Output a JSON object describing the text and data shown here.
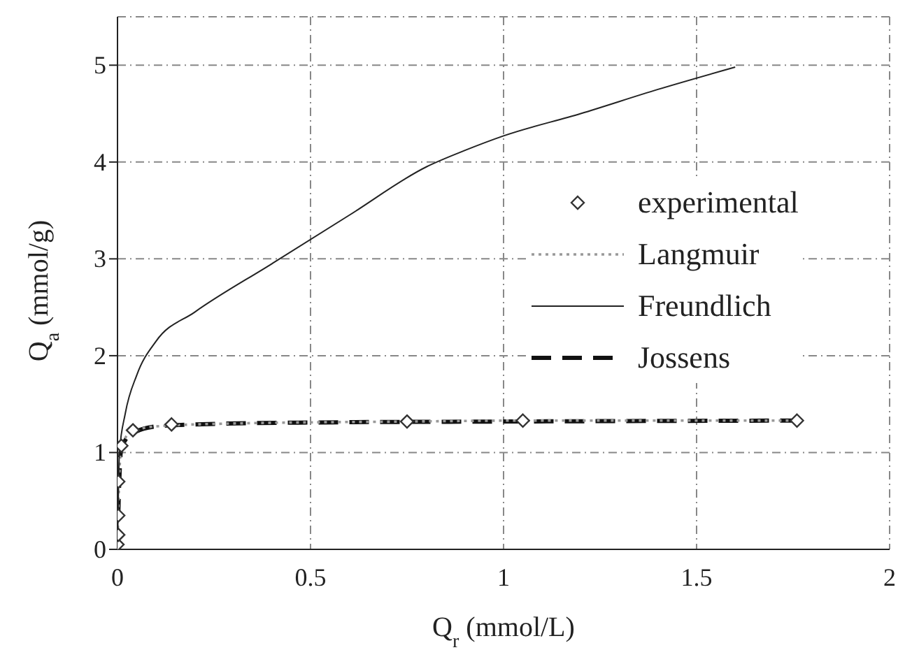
{
  "chart_data": {
    "type": "line",
    "xlabel": "Q$_{r}$ (mmol/L)",
    "ylabel": "Q$_{a}$ (mmol/g)",
    "xlim": [
      0,
      2
    ],
    "xticks": [
      0,
      0.5,
      1,
      1.5,
      2
    ],
    "ylim": [
      0,
      5.5
    ],
    "yticks": [
      0,
      1,
      2,
      3,
      4,
      5
    ],
    "grid": true,
    "legend": "right",
    "series": [
      {
        "name": "experimental",
        "type": "scatter",
        "marker": "diamond",
        "color": "#333333",
        "x": [
          0,
          0.002,
          0.002,
          0.002,
          0.01,
          0.04,
          0.14,
          0.75,
          1.05,
          1.76
        ],
        "values": [
          0.05,
          0.15,
          0.35,
          0.7,
          1.07,
          1.23,
          1.29,
          1.32,
          1.33,
          1.33
        ]
      },
      {
        "name": "Langmuir",
        "line_style": "dotted",
        "color": "#999999",
        "x": [
          0,
          0.002,
          0.005,
          0.01,
          0.02,
          0.04,
          0.1,
          0.3,
          0.75,
          1.05,
          1.76
        ],
        "values": [
          0,
          0.4,
          0.8,
          1.05,
          1.15,
          1.22,
          1.27,
          1.3,
          1.32,
          1.33,
          1.33
        ]
      },
      {
        "name": "Freundlich",
        "line_style": "solid",
        "color": "#222222",
        "x": [
          0,
          0.005,
          0.02,
          0.05,
          0.1,
          0.2,
          0.4,
          0.6,
          0.8,
          0.9,
          1,
          1.2,
          1.4,
          1.6
        ],
        "values": [
          0,
          1,
          1.4,
          1.8,
          2.15,
          2.45,
          2.95,
          3.45,
          3.95,
          4.12,
          4.27,
          4.5,
          4.75,
          4.98
        ]
      },
      {
        "name": "Jossens",
        "line_style": "dashed",
        "color": "#111111",
        "x": [
          0,
          0.003,
          0.01,
          0.04,
          0.1,
          0.2,
          0.5,
          1,
          1.76
        ],
        "values": [
          0,
          0.5,
          1.05,
          1.2,
          1.27,
          1.29,
          1.31,
          1.32,
          1.33
        ]
      }
    ]
  }
}
